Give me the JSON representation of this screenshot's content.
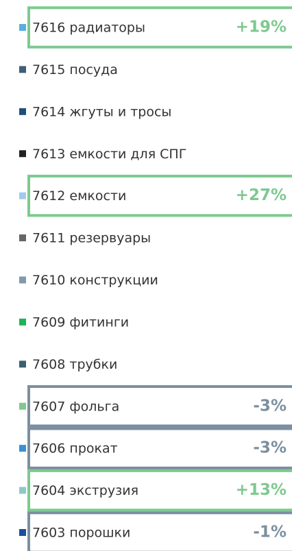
{
  "items": [
    {
      "label": "7616 радиаторы",
      "color": "#5aaee0",
      "change": "+19%",
      "box_color": "#7dc98f"
    },
    {
      "label": "7615 посуда",
      "color": "#3f5f73"
    },
    {
      "label": "7614 жгуты и тросы",
      "color": "#1f4e79"
    },
    {
      "label": "7613 емкости для СПГ",
      "color": "#222222"
    },
    {
      "label": "7612 емкости",
      "color": "#9ecbee",
      "change": "+27%",
      "box_color": "#7dc98f"
    },
    {
      "label": "7611 резервуары",
      "color": "#666666"
    },
    {
      "label": "7610 конструкции",
      "color": "#7f9aa8"
    },
    {
      "label": "7609 фитинги",
      "color": "#1fb35a"
    },
    {
      "label": "7608 трубки",
      "color": "#3d5f70"
    },
    {
      "label": "7607 фольга",
      "color": "#7dc98f",
      "change": "-3%",
      "box_color": "#7a8fa0"
    },
    {
      "label": "7606 прокат",
      "color": "#3a8fd6",
      "change": "-3%",
      "box_color": "#7a8fa0"
    },
    {
      "label": "7604 экструзия",
      "color": "#8fc8c8",
      "change": "+13%",
      "box_color": "#7dc98f"
    },
    {
      "label": "7603 порошки",
      "color": "#1a4fa0",
      "change": "-1%",
      "box_color": "#7a8fa0"
    }
  ]
}
